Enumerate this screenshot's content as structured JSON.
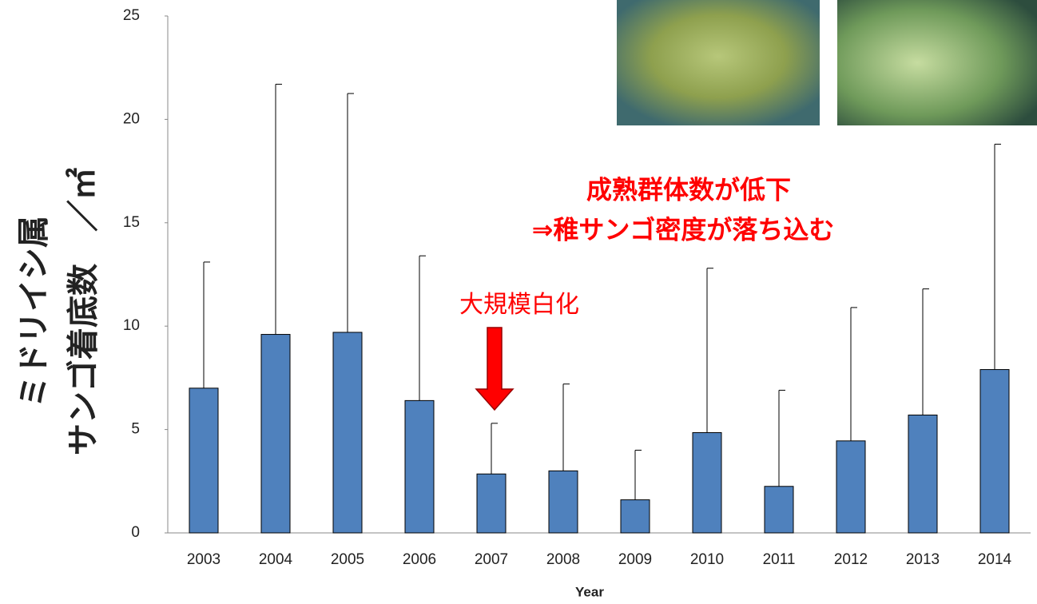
{
  "chart_data": {
    "type": "bar",
    "x_label": "Year",
    "y_label": [
      "ミドリイシ属",
      "サンゴ着底数　／㎡"
    ],
    "annotations": [
      "大規模白化",
      "成熟群体数が低下",
      "⇒稚サンゴ密度が落ち込む"
    ],
    "categories": [
      "2003",
      "2004",
      "2005",
      "2006",
      "2007",
      "2008",
      "2009",
      "2010",
      "2011",
      "2012",
      "2013",
      "2014"
    ],
    "values": [
      7.0,
      9.6,
      9.7,
      6.4,
      2.85,
      3.0,
      1.6,
      4.85,
      2.25,
      4.45,
      5.7,
      7.9
    ],
    "errors": [
      6.1,
      12.1,
      11.55,
      7.0,
      2.45,
      4.2,
      2.4,
      7.95,
      4.65,
      6.45,
      6.1,
      10.9
    ],
    "color": "#4f81bd",
    "ylim": [
      0,
      25
    ],
    "yticks": [
      0,
      5,
      10,
      15,
      20,
      25
    ]
  }
}
